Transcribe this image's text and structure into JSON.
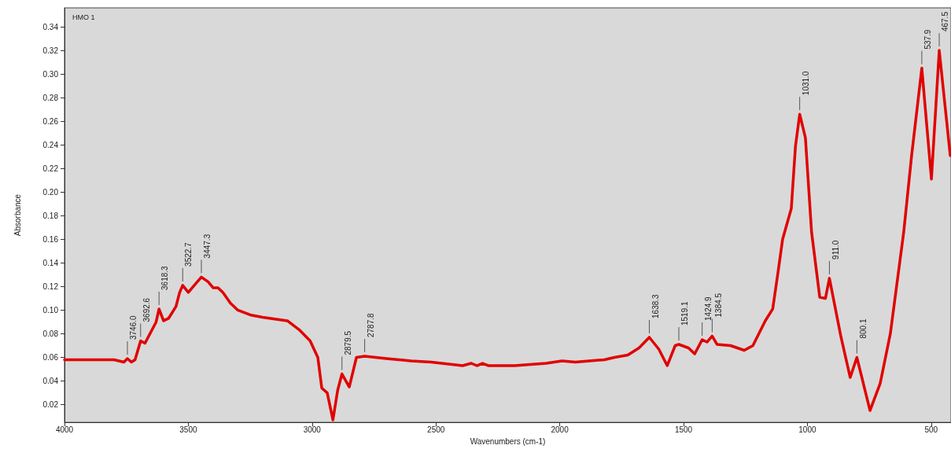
{
  "chart_data": {
    "type": "line",
    "title": "HMO 1",
    "xlabel": "Wavenumbers (cm-1)",
    "ylabel": "Absorbance",
    "xlim": [
      4000,
      420
    ],
    "xticks": [
      4000,
      3500,
      3000,
      2500,
      2000,
      1500,
      1000,
      500
    ],
    "ylim": [
      0.005,
      0.356
    ],
    "yticks": [
      0.02,
      0.04,
      0.06,
      0.08,
      {
        "value": 0.1,
        "label": "0.10"
      },
      0.12,
      0.14,
      0.16,
      0.18,
      {
        "value": 0.2,
        "label": "0.20"
      },
      0.22,
      0.24,
      0.26,
      0.28,
      {
        "value": 0.3,
        "label": "0.30"
      },
      0.32,
      0.34
    ],
    "grid": false,
    "marker": "none",
    "line_style": "solid",
    "series": [
      {
        "color": "#e00000",
        "x": [
          4000,
          3900,
          3850,
          3800,
          3760,
          3746,
          3730,
          3715,
          3692.6,
          3675,
          3650,
          3630,
          3618.3,
          3600,
          3580,
          3550,
          3535,
          3522.7,
          3500,
          3480,
          3447.3,
          3420,
          3400,
          3380,
          3360,
          3330,
          3300,
          3250,
          3200,
          3100,
          3050,
          3008,
          2977,
          2961,
          2939,
          2916,
          2897,
          2879.5,
          2850,
          2821,
          2787.8,
          2700,
          2600,
          2519,
          2392,
          2357,
          2335,
          2312,
          2287,
          2182,
          2055,
          1991,
          1937,
          1820,
          1779,
          1725,
          1680,
          1638.3,
          1600,
          1566,
          1534,
          1519.1,
          1480,
          1455,
          1424.9,
          1405,
          1384.5,
          1365,
          1310,
          1255,
          1220,
          1170,
          1140,
          1118,
          1100,
          1065,
          1048,
          1031,
          1008,
          983,
          950,
          927,
          911,
          865,
          827,
          800.1,
          747,
          706,
          665,
          611,
          579,
          537.9,
          499,
          467.5,
          423
        ],
        "values": [
          0.058,
          0.058,
          0.058,
          0.058,
          0.056,
          0.059,
          0.056,
          0.058,
          0.074,
          0.072,
          0.082,
          0.09,
          0.101,
          0.091,
          0.093,
          0.103,
          0.115,
          0.121,
          0.115,
          0.12,
          0.128,
          0.124,
          0.119,
          0.119,
          0.115,
          0.106,
          0.1,
          0.096,
          0.094,
          0.091,
          0.083,
          0.074,
          0.06,
          0.034,
          0.03,
          0.007,
          0.032,
          0.046,
          0.035,
          0.06,
          0.061,
          0.059,
          0.057,
          0.056,
          0.053,
          0.055,
          0.053,
          0.055,
          0.053,
          0.053,
          0.055,
          0.057,
          0.056,
          0.058,
          0.06,
          0.062,
          0.068,
          0.077,
          0.067,
          0.053,
          0.07,
          0.071,
          0.068,
          0.063,
          0.075,
          0.073,
          0.078,
          0.071,
          0.07,
          0.066,
          0.07,
          0.091,
          0.101,
          0.133,
          0.16,
          0.186,
          0.239,
          0.266,
          0.246,
          0.166,
          0.111,
          0.11,
          0.127,
          0.078,
          0.043,
          0.06,
          0.015,
          0.038,
          0.08,
          0.166,
          0.231,
          0.305,
          0.211,
          0.32,
          0.231
        ]
      }
    ],
    "annotations": [
      {
        "text": "3746.0",
        "x": 3746,
        "y": 0.059
      },
      {
        "text": "3692.6",
        "x": 3692.6,
        "y": 0.074
      },
      {
        "text": "3618.3",
        "x": 3618.3,
        "y": 0.101
      },
      {
        "text": "3522.7",
        "x": 3522.7,
        "y": 0.121
      },
      {
        "text": "3447.3",
        "x": 3447.3,
        "y": 0.128
      },
      {
        "text": "2879.5",
        "x": 2879.5,
        "y": 0.046
      },
      {
        "text": "2787.8",
        "x": 2787.8,
        "y": 0.061
      },
      {
        "text": "1638.3",
        "x": 1638.3,
        "y": 0.077
      },
      {
        "text": "1519.1",
        "x": 1519.1,
        "y": 0.071
      },
      {
        "text": "1424.9",
        "x": 1424.9,
        "y": 0.075
      },
      {
        "text": "1384.5",
        "x": 1384.5,
        "y": 0.078
      },
      {
        "text": "1031.0",
        "x": 1031,
        "y": 0.266
      },
      {
        "text": "911.0",
        "x": 911,
        "y": 0.127
      },
      {
        "text": "800.1",
        "x": 800.1,
        "y": 0.06
      },
      {
        "text": "537.9",
        "x": 537.9,
        "y": 0.305
      },
      {
        "text": "467.5",
        "x": 467.5,
        "y": 0.32
      }
    ]
  }
}
